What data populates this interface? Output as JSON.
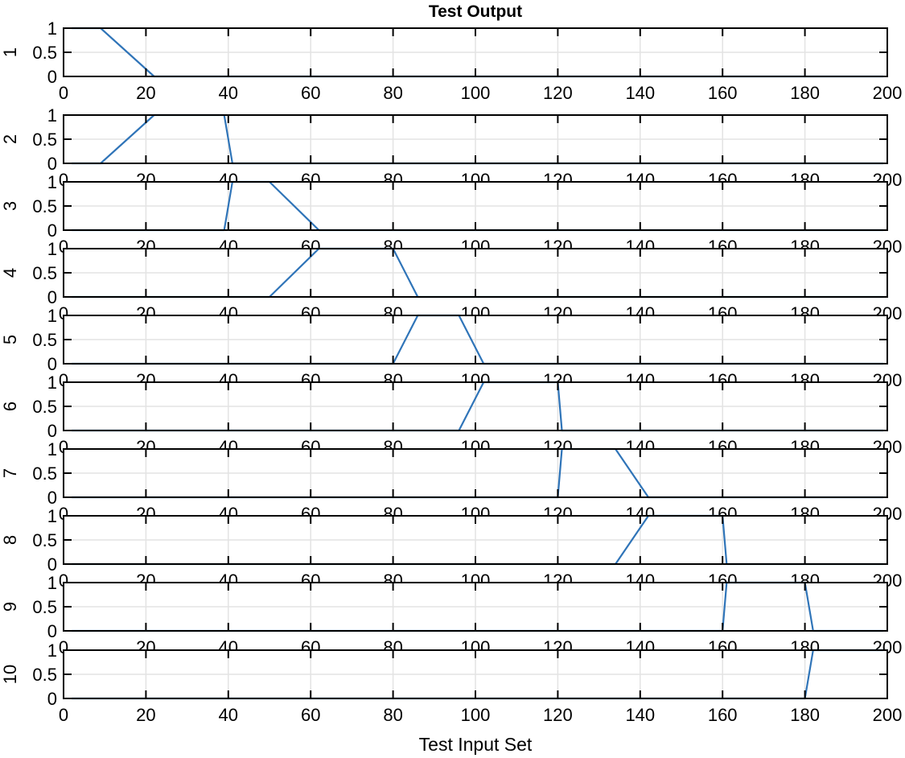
{
  "chart_data": {
    "type": "line",
    "title": "Test Output",
    "xlabel": "Test Input Set",
    "layout": "10 stacked subplots sharing x-axis",
    "grid": true,
    "line_color": "#2f74b8",
    "xlim": [
      0,
      200
    ],
    "ylim": [
      0,
      1
    ],
    "xticks": [
      0,
      20,
      40,
      60,
      80,
      100,
      120,
      140,
      160,
      180,
      200
    ],
    "yticks": [
      0,
      0.5,
      1
    ],
    "ytick_labels": [
      "0",
      "0.5",
      "1"
    ],
    "subplots": [
      {
        "ylabel": "1",
        "x": [
          2,
          9,
          22,
          199
        ],
        "y": [
          1,
          1,
          0,
          0
        ]
      },
      {
        "ylabel": "2",
        "x": [
          2,
          9,
          22,
          39,
          41,
          199
        ],
        "y": [
          0,
          0,
          1,
          1,
          0,
          0
        ]
      },
      {
        "ylabel": "3",
        "x": [
          2,
          39,
          41,
          50,
          62,
          199
        ],
        "y": [
          0,
          0,
          1,
          1,
          0,
          0
        ]
      },
      {
        "ylabel": "4",
        "x": [
          2,
          50,
          62,
          80,
          86,
          199
        ],
        "y": [
          0,
          0,
          1,
          1,
          0,
          0
        ]
      },
      {
        "ylabel": "5",
        "x": [
          2,
          80,
          86,
          96,
          102,
          199
        ],
        "y": [
          0,
          0,
          1,
          1,
          0,
          0
        ]
      },
      {
        "ylabel": "6",
        "x": [
          2,
          96,
          102,
          120,
          121,
          199
        ],
        "y": [
          0,
          0,
          1,
          1,
          0,
          0
        ]
      },
      {
        "ylabel": "7",
        "x": [
          2,
          120,
          121,
          134,
          142,
          199
        ],
        "y": [
          0,
          0,
          1,
          1,
          0,
          0
        ]
      },
      {
        "ylabel": "8",
        "x": [
          2,
          134,
          142,
          160,
          161,
          199
        ],
        "y": [
          0,
          0,
          1,
          1,
          0,
          0
        ]
      },
      {
        "ylabel": "9",
        "x": [
          2,
          160,
          161,
          180,
          182,
          199
        ],
        "y": [
          0,
          0,
          1,
          1,
          0,
          0
        ]
      },
      {
        "ylabel": "10",
        "x": [
          2,
          180,
          182,
          199
        ],
        "y": [
          0,
          0,
          1,
          1
        ]
      }
    ]
  }
}
